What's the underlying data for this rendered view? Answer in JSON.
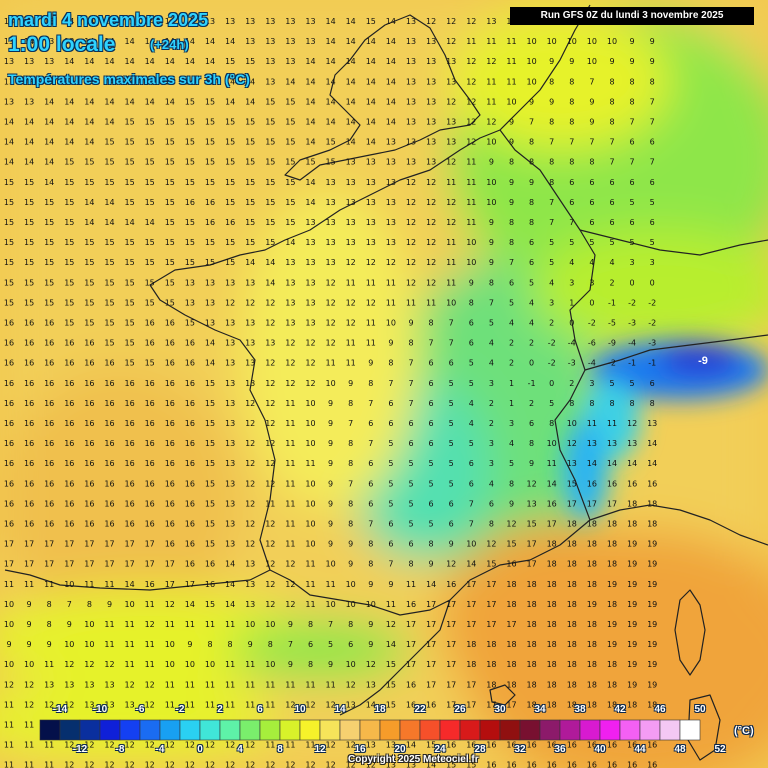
{
  "header": {
    "date": "mardi 4 novembre 2025",
    "time": "1:00 locale",
    "lead": "(+24h)",
    "variable": "Températures maximales sur 3h (°C)",
    "run": "Run GFS 0Z du lundi 3 novembre 2025"
  },
  "footer": {
    "copyright": "Copyright 2025 Meteociel.fr"
  },
  "legend": {
    "unit": "(°C)",
    "top_labels": [
      "-14",
      "-10",
      "-6",
      "-2",
      "2",
      "6",
      "10",
      "14",
      "18",
      "22",
      "26",
      "30",
      "34",
      "38",
      "42",
      "46",
      "50"
    ],
    "bottom_labels": [
      "-12",
      "-8",
      "-4",
      "0",
      "4",
      "8",
      "12",
      "16",
      "20",
      "24",
      "28",
      "32",
      "36",
      "40",
      "44",
      "48",
      "52"
    ],
    "colors": [
      "#04104a",
      "#062f6e",
      "#0a2f9e",
      "#0f20d8",
      "#1440f2",
      "#1a6cf2",
      "#18a0f2",
      "#2ad0f2",
      "#40e6d8",
      "#5ef2a8",
      "#7aee6c",
      "#a6ee3c",
      "#d8f22a",
      "#f6f22a",
      "#f6e45a",
      "#f6d070",
      "#f6b84a",
      "#f69c2a",
      "#f6782a",
      "#f6502a",
      "#f62a2a",
      "#d81a1a",
      "#b40e0e",
      "#901010",
      "#781030",
      "#8c1a6a",
      "#b01a9a",
      "#d81ad0",
      "#f020f0",
      "#f460f4",
      "#f49cf4",
      "#f4c8f4",
      "#ffffff"
    ]
  },
  "map": {
    "cold_core_label": "-9",
    "temperature_colors": {
      "c_neg8": "#2b44d6",
      "c_neg4": "#1f7aee",
      "c_0": "#2ab4f2",
      "c_2": "#3ed0e4",
      "c_4": "#52e0b0",
      "c_6": "#6ee07a",
      "c_8": "#8ee64a",
      "c_10": "#b8ee2e",
      "c_12": "#e6f22a",
      "c_13": "#f4ec5a",
      "c_14": "#f4dc62",
      "c_15": "#f2cf58",
      "c_16": "#f0c04e",
      "c_18": "#f0a43a",
      "c_19": "#ec8e32"
    },
    "rows": [
      "13 13 13 14 14 15 13 14 14 15 13 13 13 13 13 13 14 14 15 14 13 12 12 12 13 13 13 13 13 13 12 12 12",
      "13 14 13 13 14 14 14 14 14 14 14 14 13 13 13 13 14 14 14 14 13 13 12 11 11 11 10 10 10 10 10 9 9",
      "13 13 13 14 14 14 14 14 14 14 14 15 15 13 13 14 14 14 14 14 13 13 13 12 12 11 10 9 9 10 9 9 9",
      "13 13 14 13 14 14 14 14 14 14 15 14 14 13 14 14 14 14 14 14 13 13 13 12 11 11 10 8 8 7 8 8 8",
      "13 13 14 14 14 14 14 14 14 15 15 14 14 15 15 14 14 14 14 14 13 13 12 12 11 10 9 9 8 9 8 8 7",
      "14 14 14 14 14 14 15 15 15 15 15 15 15 15 15 14 14 14 14 14 13 13 13 12 12 9 7 8 8 9 8 7 7",
      "14 14 14 14 14 15 15 15 15 15 15 15 15 15 15 14 15 14 14 13 13 13 13 12 10 9 8 7 7 7 7 6 6",
      "14 14 14 15 15 15 15 15 15 15 15 15 15 15 15 15 15 13 13 13 13 13 12 11 9 8 8 8 8 8 7 7 7",
      "15 15 14 15 15 15 15 15 15 15 15 15 15 15 15 14 13 13 13 13 12 12 11 11 10 9 9 8 6 6 6 6 6",
      "15 15 15 15 14 14 15 15 15 16 16 15 15 15 15 14 13 13 13 13 12 12 12 11 10 9 8 7 6 6 6 5 5",
      "15 15 15 15 14 14 14 14 15 15 16 16 15 15 15 13 13 13 13 13 12 12 12 11 9 8 8 7 7 6 6 6 6",
      "15 15 15 15 15 15 15 15 15 15 15 15 15 15 14 13 13 13 13 13 12 12 11 10 9 8 6 5 5 5 5 5 5",
      "15 15 15 15 15 15 15 15 15 15 15 15 14 14 13 13 13 12 12 12 12 12 11 10 9 7 6 5 4 4 4 3 3",
      "15 15 15 15 15 15 15 15 15 13 13 13 13 14 13 13 12 11 11 11 12 12 11 9 8 6 5 4 3 3 2 0 0",
      "15 15 15 15 15 15 15 15 15 13 13 12 12 12 13 13 12 12 12 11 11 11 10 8 7 5 4 3 1 0 -1 -2 -2",
      "16 16 16 15 15 15 15 16 16 15 13 13 13 12 13 13 12 12 11 10 9 8 7 6 5 4 4 2 0 -2 -5 -3 -2",
      "16 16 16 16 16 15 15 16 16 16 14 13 13 13 12 12 12 11 11 9 8 7 7 6 4 2 2 -2 -4 -6 -9 -4 -3",
      "16 16 16 16 16 16 15 15 16 16 14 13 13 12 12 12 11 11 9 8 7 6 6 5 4 2 0 -2 -3 -4 -2 -1 -1",
      "16 16 16 16 16 16 16 16 16 16 15 13 13 12 12 12 10 9 8 7 7 6 5 5 3 1 -1 0 2 3 5 5 6",
      "16 16 16 16 16 16 16 16 16 16 15 13 12 12 11 10 9 8 7 6 7 6 5 4 2 1 2 5 8 8 8 8 8",
      "16 16 16 16 16 16 16 16 16 16 15 13 12 12 11 10 9 7 6 6 6 6 5 4 2 3 6 8 10 11 11 12 13",
      "16 16 16 16 16 16 16 16 16 16 15 13 12 12 11 10 9 8 7 5 6 6 5 5 3 4 8 10 12 13 13 13 14",
      "16 16 16 16 16 16 16 16 16 16 15 13 12 12 11 11 9 8 6 5 5 5 5 6 3 5 9 11 13 14 14 14 14",
      "16 16 16 16 16 16 16 16 16 16 15 13 12 12 11 10 9 7 6 5 5 5 5 6 4 8 12 14 15 16 16 16 16",
      "16 16 16 16 16 16 16 16 16 16 15 13 12 11 11 10 9 8 6 5 5 6 6 7 6 9 13 16 17 17 17 18 18",
      "16 16 16 16 16 16 16 16 16 16 15 13 12 12 11 10 9 8 7 6 5 5 6 7 8 12 15 17 18 18 18 18 18",
      "17 17 17 17 17 17 17 17 16 16 15 13 12 12 11 10 9 9 8 6 6 8 9 10 12 15 17 18 18 18 18 19 19",
      "17 17 17 17 17 17 17 17 17 16 16 14 13 12 12 11 10 9 8 7 8 9 12 14 15 16 17 18 18 18 18 19 19",
      "11 11 11 10 11 11 14 16 17 17 16 14 13 12 12 11 11 10 9 9 11 14 16 17 17 18 18 18 18 18 19 19 19",
      "10 9 8 7 8 9 10 11 12 14 15 14 13 12 12 11 10 10 10 11 16 17 17 17 17 18 18 18 18 19 18 19 19",
      "10 9 8 9 10 11 11 12 11 11 11 11 10 10 9 8 7 8 9 12 17 17 17 17 17 17 18 18 18 18 19 19 19",
      "9 9 9 10 10 11 11 11 10 9 8 8 9 8 7 6 5 6 9 14 17 17 17 18 18 18 18 18 18 18 19 19 19",
      "10 10 11 12 12 12 11 11 10 10 10 11 11 10 9 8 9 10 12 15 17 17 17 18 18 18 18 18 18 18 18 19 19",
      "12 12 13 13 13 13 12 12 11 11 11 11 11 11 11 11 11 12 13 15 16 17 17 17 18 18 18 18 18 18 18 19 19",
      "11 12 12 12 13 13 13 12 11 11 11 11 11 11 12 12 12 13 14 15 16 16 17 17 17 17 18 18 18 18 18 18 18",
      "11 11 12 12 12 12 12 12 12 12 12 11 11 11 12 12 12 12 13 14 15 16 16 17 17 17 17 17 17 17 17 17 17",
      "11 11 11 12 12 12 12 12 12 12 12 12 12 11 11 11 12 12 13 13 14 15 16 16 16 16 16 16 16 16 16 16 16",
      "11 11 11 12 12 12 12 12 12 12 12 12 12 12 12 12 12 12 12 13 13 14 15 15 16 16 16 16 16 16 16 16 16"
    ]
  }
}
